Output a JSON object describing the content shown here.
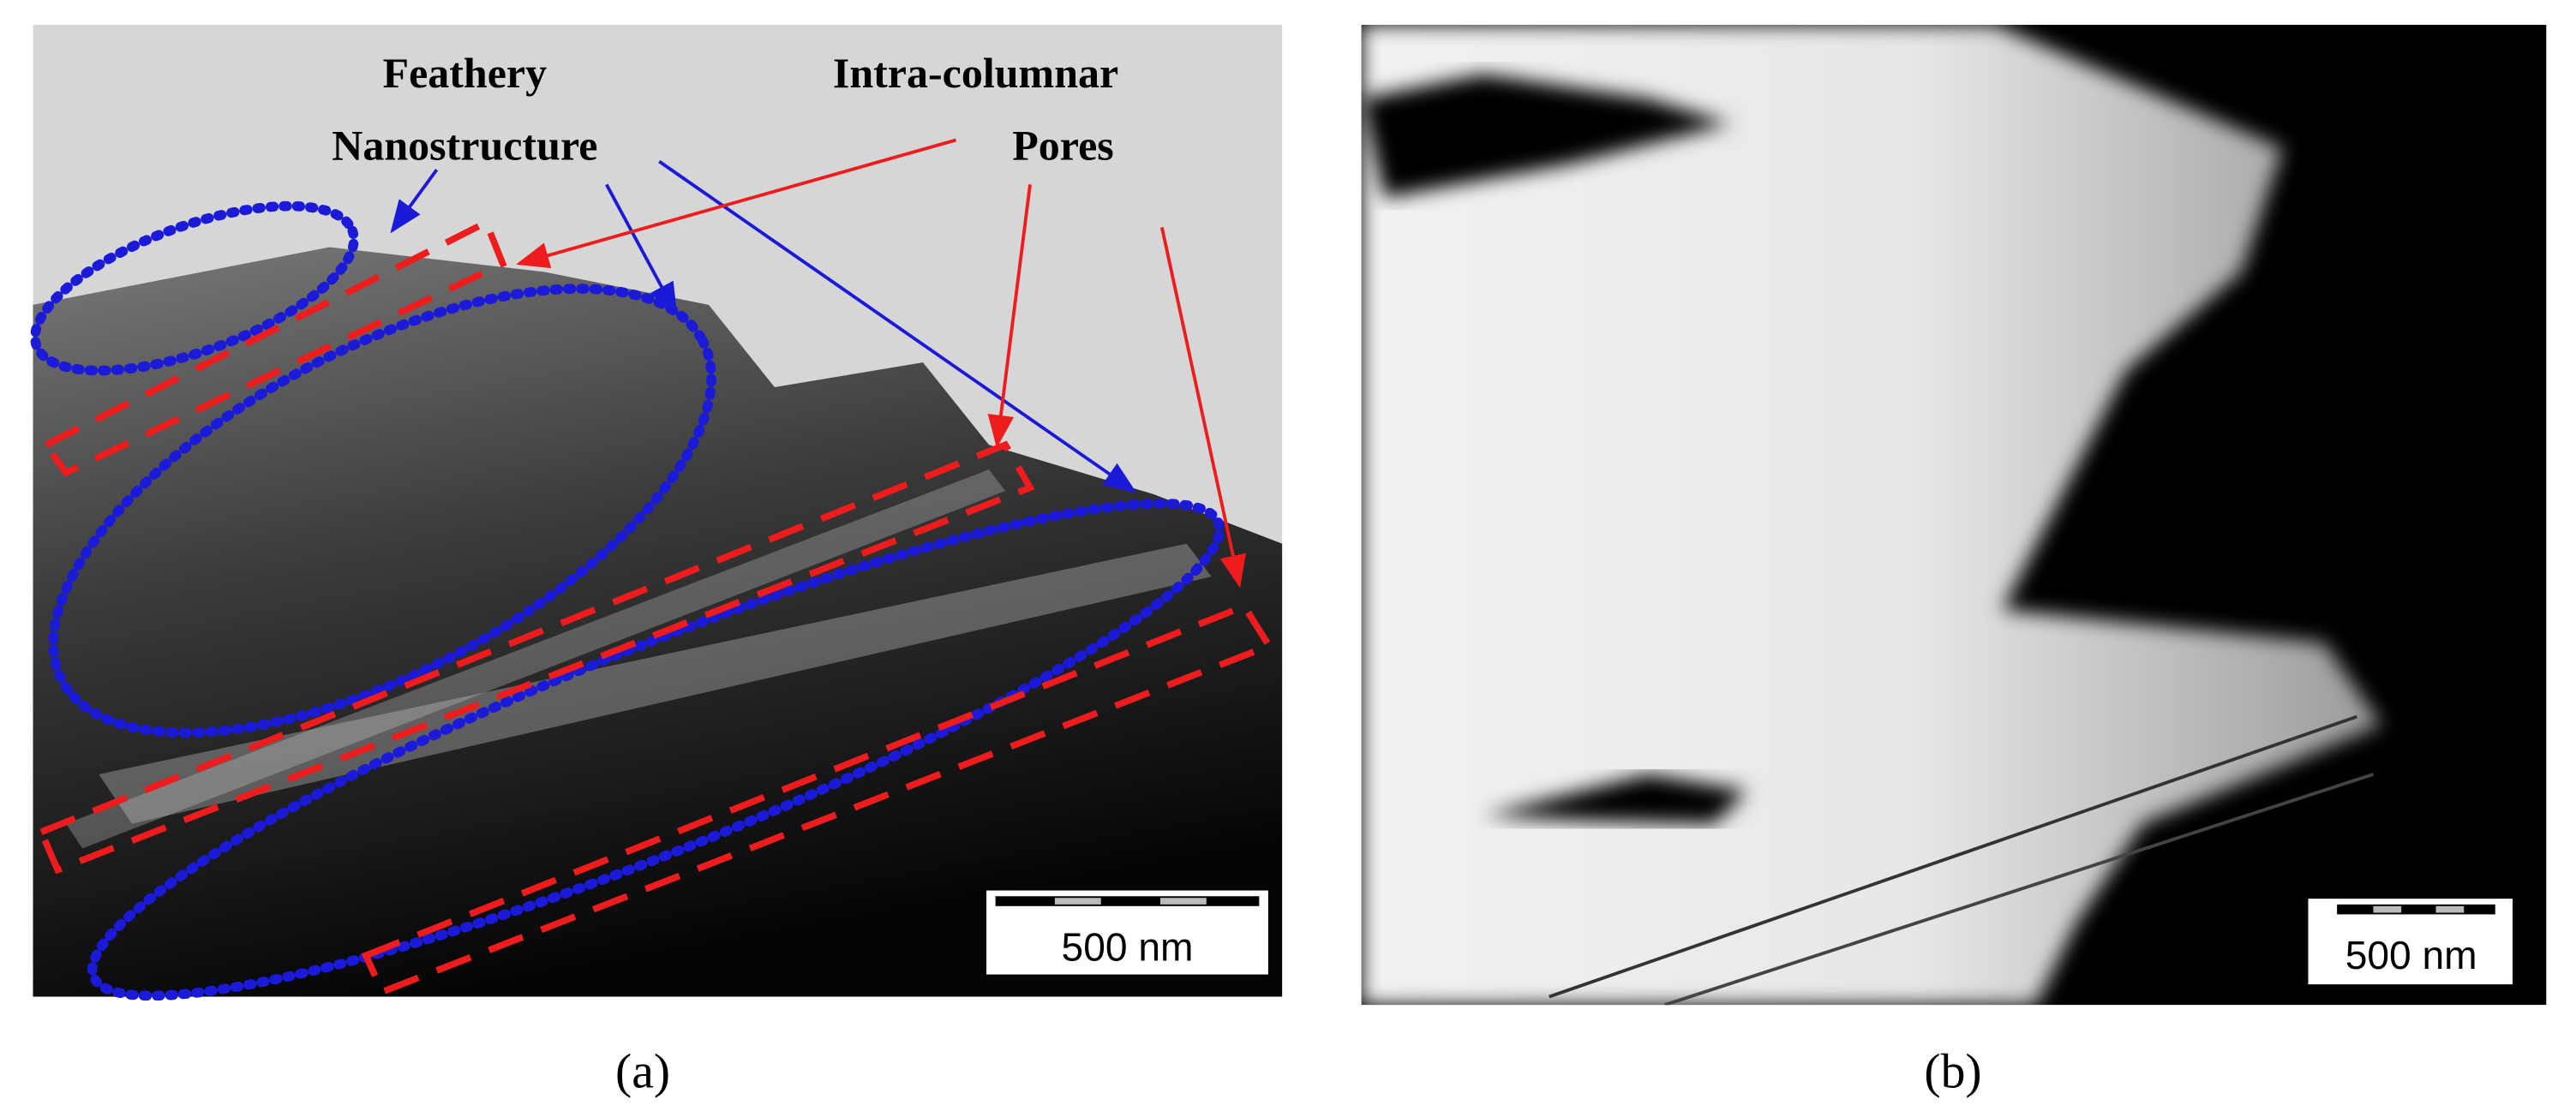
{
  "panels": [
    {
      "caption": "(a)",
      "annotations": [
        {
          "lines": [
            "Feathery",
            "Nanostructure"
          ]
        },
        {
          "lines": [
            "Intra-columnar",
            "Pores"
          ]
        }
      ],
      "scale_bar": "500 nm"
    },
    {
      "caption": "(b)",
      "scale_bar": "500 nm"
    }
  ]
}
